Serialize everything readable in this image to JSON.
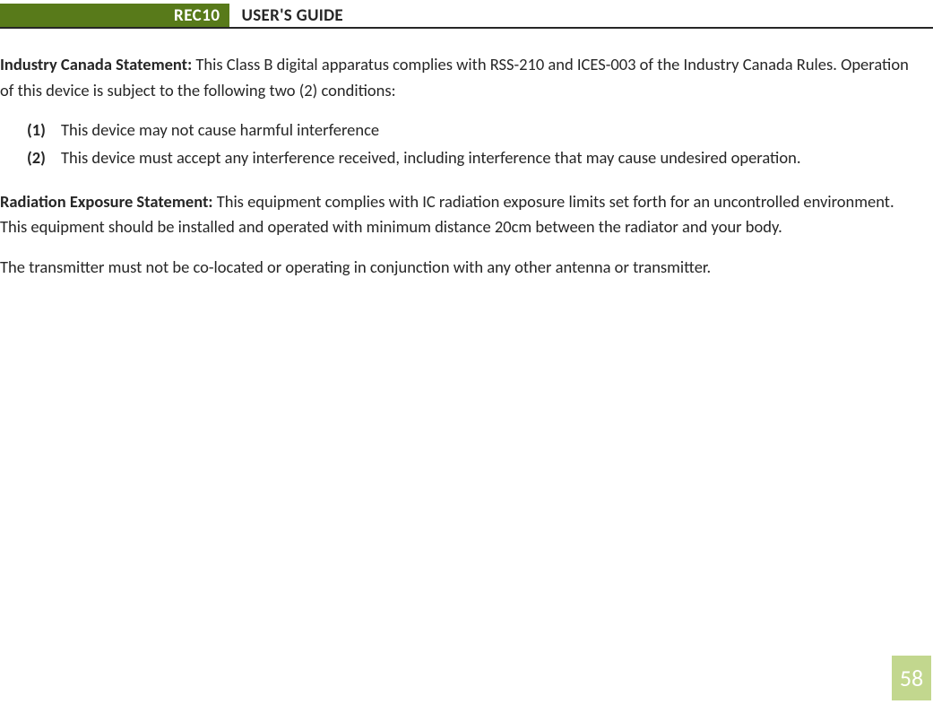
{
  "header": {
    "product_tag": "REC10",
    "guide_title": "USER'S GUIDE"
  },
  "content": {
    "industry_statement": {
      "label": "Industry Canada Statement:",
      "intro": "This Class B digital apparatus complies with RSS-210 and ICES-003 of the Industry Canada Rules.  Operation of this device is subject to the following two (2) conditions:",
      "items": [
        {
          "marker": "(1)",
          "text": "This device may not cause harmful interference"
        },
        {
          "marker": "(2)",
          "text": "This device must accept any interference received, including interference that may cause undesired operation."
        }
      ]
    },
    "radiation_statement": {
      "label": "Radiation Exposure Statement:",
      "text": "This equipment complies with IC radiation exposure limits set forth for an uncontrolled environment.  This equipment should be installed and operated with minimum distance 20cm between the radiator and your body."
    },
    "transmitter_note": "The transmitter must not be co-located or operating in conjunction with any other antenna or transmitter."
  },
  "page_number": "58",
  "colors": {
    "accent_dark": "#587a1a",
    "accent_light": "#c2d78e",
    "text": "#262626",
    "background": "#ffffff"
  }
}
